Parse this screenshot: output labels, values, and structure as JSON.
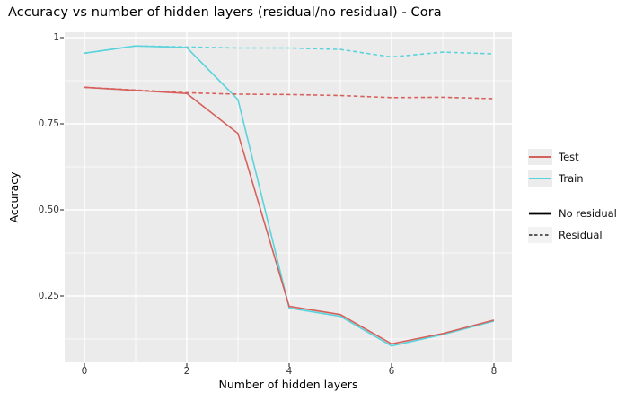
{
  "chart_data": {
    "type": "line",
    "title": "Accuracy vs number of hidden layers (residual/no residual) - Cora",
    "xlabel": "Number of hidden layers",
    "ylabel": "Accuracy",
    "x": [
      0,
      1,
      2,
      3,
      4,
      5,
      6,
      7,
      8
    ],
    "xlim": [
      -0.4,
      8.35
    ],
    "ylim": [
      0.05,
      1.02
    ],
    "grid": true,
    "x_ticks": [
      {
        "label": "0",
        "value": 0
      },
      {
        "label": "2",
        "value": 2
      },
      {
        "label": "4",
        "value": 4
      },
      {
        "label": "6",
        "value": 6
      },
      {
        "label": "8",
        "value": 8
      }
    ],
    "x_minor": [
      1,
      3,
      5,
      7
    ],
    "y_ticks": [
      {
        "label": "1",
        "value": 1.0
      },
      {
        "label": "0.75",
        "value": 0.75
      },
      {
        "label": "0.50",
        "value": 0.5
      },
      {
        "label": "0.25",
        "value": 0.25
      }
    ],
    "y_minor": [
      0.875,
      0.625,
      0.375,
      0.125
    ],
    "colors": {
      "test": "#D6605C",
      "train": "#5BD3DC",
      "panel_bg": "#EBEBEB",
      "grid": "#FFFFFF",
      "tick_text": "#333333"
    },
    "series": [
      {
        "name": "Train / No residual",
        "split": "Train",
        "residual": false,
        "color": "#5BD3DC",
        "line": "solid",
        "values": [
          0.955,
          0.976,
          0.971,
          0.82,
          0.215,
          0.191,
          0.105,
          0.138,
          0.177
        ]
      },
      {
        "name": "Train / Residual",
        "split": "Train",
        "residual": true,
        "color": "#5BD3DC",
        "line": "dashed",
        "values": [
          0.955,
          0.976,
          0.973,
          0.97,
          0.97,
          0.966,
          0.944,
          0.958,
          0.953
        ]
      },
      {
        "name": "Test / No residual",
        "split": "Test",
        "residual": false,
        "color": "#D6605C",
        "line": "solid",
        "values": [
          0.856,
          0.847,
          0.838,
          0.722,
          0.22,
          0.196,
          0.111,
          0.141,
          0.18
        ]
      },
      {
        "name": "Test / Residual",
        "split": "Test",
        "residual": true,
        "color": "#D6605C",
        "line": "dashed",
        "values": [
          0.856,
          0.848,
          0.84,
          0.836,
          0.835,
          0.832,
          0.826,
          0.827,
          0.823
        ]
      }
    ],
    "legend": {
      "position": "right",
      "entries": [
        {
          "id": "test",
          "label": "Test",
          "color": "#D6605C",
          "line": "solid",
          "weight": 2,
          "key_bg": "#ECECEC"
        },
        {
          "id": "train",
          "label": "Train",
          "color": "#5BD3DC",
          "line": "solid",
          "weight": 2,
          "key_bg": "#ECECEC"
        },
        {
          "id": "no-residual",
          "label": "No residual",
          "color": "#000000",
          "line": "solid",
          "weight": 2.8,
          "key_bg": "#FFFFFF"
        },
        {
          "id": "residual",
          "label": "Residual",
          "color": "#000000",
          "line": "dashed",
          "weight": 1.2,
          "key_bg": "#F2F2F2"
        }
      ]
    }
  }
}
